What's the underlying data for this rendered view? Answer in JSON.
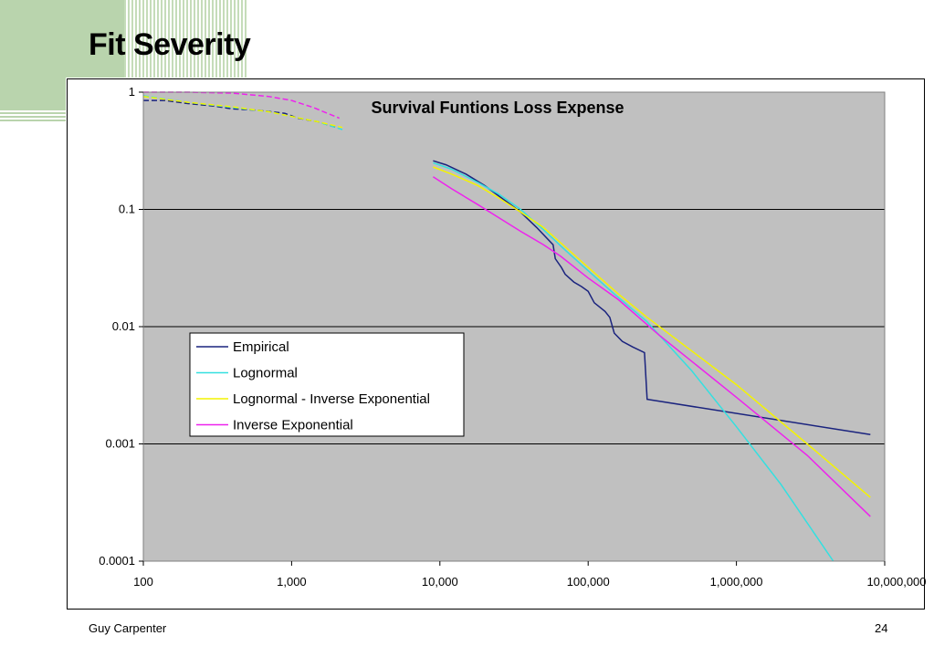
{
  "slide": {
    "title": "Fit Severity",
    "footer_left": "Guy Carpenter",
    "page_number": "24"
  },
  "colors": {
    "plot_bg": "#c0c0c0",
    "deco_green": "#b9d4ad",
    "Empirical": "#1a237e",
    "Lognormal": "#33e0e0",
    "Lognormal - Inverse Exponential": "#f4f400",
    "Inverse Exponential": "#ee22ee"
  },
  "chart_data": {
    "type": "line",
    "title": "Survival Funtions Loss Expense",
    "xscale": "log",
    "yscale": "log",
    "xlim": [
      100,
      10000000
    ],
    "ylim": [
      0.0001,
      1
    ],
    "x_tick_values": [
      100,
      1000,
      10000,
      100000,
      1000000,
      10000000
    ],
    "x_tick_labels": [
      "100",
      "1,000",
      "10,000",
      "100,000",
      "1,000,000",
      "10,000,000"
    ],
    "y_tick_values": [
      1,
      0.1,
      0.01,
      0.001,
      0.0001
    ],
    "y_tick_labels": [
      "1",
      "0.1",
      "0.01",
      "0.001",
      "0.0001"
    ],
    "grid": "horizontal major lines",
    "legend_position": "lower-left",
    "legend": [
      "Empirical",
      "Lognormal",
      "Lognormal - Inverse Exponential",
      "Inverse Exponential"
    ],
    "series": [
      {
        "name": "Empirical",
        "segments": [
          [
            [
              100,
              0.85
            ],
            [
              140,
              0.85
            ],
            [
              200,
              0.8
            ],
            [
              300,
              0.76
            ],
            [
              400,
              0.72
            ],
            [
              600,
              0.7
            ],
            [
              900,
              0.66
            ],
            [
              1100,
              0.6
            ],
            [
              1500,
              0.56
            ],
            [
              2000,
              0.5
            ]
          ],
          [
            [
              9000,
              0.26
            ],
            [
              11000,
              0.24
            ],
            [
              15000,
              0.2
            ],
            [
              20000,
              0.16
            ],
            [
              25000,
              0.13
            ],
            [
              30000,
              0.11
            ],
            [
              35000,
              0.095
            ],
            [
              45000,
              0.07
            ],
            [
              58000,
              0.05
            ],
            [
              60000,
              0.038
            ],
            [
              66000,
              0.032
            ],
            [
              70000,
              0.028
            ],
            [
              80000,
              0.024
            ],
            [
              90000,
              0.022
            ],
            [
              100000,
              0.02
            ],
            [
              110000,
              0.016
            ],
            [
              130000,
              0.0135
            ],
            [
              140000,
              0.012
            ],
            [
              150000,
              0.0088
            ],
            [
              170000,
              0.0075
            ],
            [
              200000,
              0.0067
            ],
            [
              240000,
              0.006
            ],
            [
              250000,
              0.0024
            ],
            [
              8000000,
              0.0012
            ]
          ]
        ]
      },
      {
        "name": "Lognormal",
        "segments": [
          [
            [
              100,
              0.93
            ],
            [
              200,
              0.82
            ],
            [
              400,
              0.74
            ],
            [
              700,
              0.68
            ],
            [
              1000,
              0.62
            ],
            [
              1500,
              0.56
            ],
            [
              2200,
              0.48
            ]
          ],
          [
            [
              9000,
              0.25
            ],
            [
              12000,
              0.22
            ],
            [
              18000,
              0.17
            ],
            [
              25000,
              0.135
            ],
            [
              35000,
              0.1
            ],
            [
              50000,
              0.067
            ],
            [
              70000,
              0.045
            ],
            [
              100000,
              0.03
            ],
            [
              150000,
              0.019
            ],
            [
              250000,
              0.011
            ],
            [
              500000,
              0.0042
            ],
            [
              1000000,
              0.0014
            ],
            [
              2000000,
              0.00045
            ],
            [
              4500000,
              0.0001
            ]
          ]
        ]
      },
      {
        "name": "Lognormal - Inverse Exponential",
        "segments": [
          [
            [
              100,
              0.92
            ],
            [
              200,
              0.82
            ],
            [
              400,
              0.75
            ],
            [
              700,
              0.68
            ],
            [
              1000,
              0.62
            ],
            [
              1500,
              0.56
            ],
            [
              2200,
              0.5
            ]
          ],
          [
            [
              9000,
              0.23
            ],
            [
              12000,
              0.2
            ],
            [
              18000,
              0.16
            ],
            [
              25000,
              0.125
            ],
            [
              35000,
              0.095
            ],
            [
              50000,
              0.07
            ],
            [
              70000,
              0.048
            ],
            [
              100000,
              0.032
            ],
            [
              160000,
              0.019
            ],
            [
              250000,
              0.012
            ],
            [
              500000,
              0.0062
            ],
            [
              1000000,
              0.0032
            ],
            [
              3000000,
              0.001
            ],
            [
              8000000,
              0.00035
            ]
          ]
        ]
      },
      {
        "name": "Inverse Exponential",
        "segments": [
          [
            [
              100,
              1.0
            ],
            [
              200,
              1.0
            ],
            [
              400,
              0.98
            ],
            [
              700,
              0.92
            ],
            [
              1000,
              0.85
            ],
            [
              1400,
              0.74
            ],
            [
              2100,
              0.6
            ]
          ],
          [
            [
              9000,
              0.19
            ],
            [
              12000,
              0.15
            ],
            [
              18000,
              0.11
            ],
            [
              25000,
              0.085
            ],
            [
              35000,
              0.065
            ],
            [
              50000,
              0.05
            ],
            [
              65000,
              0.04
            ],
            [
              100000,
              0.026
            ],
            [
              160000,
              0.017
            ],
            [
              300000,
              0.0085
            ],
            [
              1000000,
              0.0025
            ],
            [
              3000000,
              0.0008
            ],
            [
              8000000,
              0.00024
            ]
          ]
        ]
      }
    ]
  }
}
